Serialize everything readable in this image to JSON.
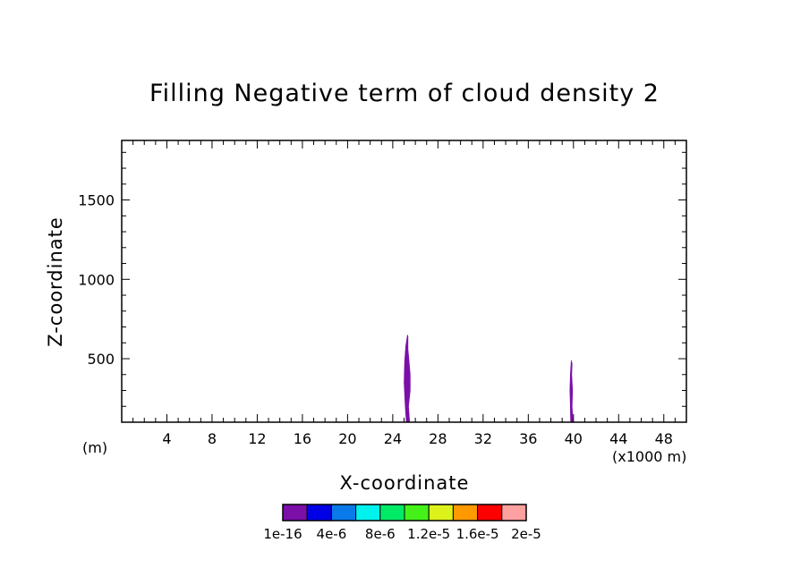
{
  "chart_data": {
    "type": "heatmap",
    "title": "Filling Negative term of cloud density 2",
    "xlabel": "X-coordinate",
    "ylabel": "Z-coordinate",
    "x_unit": "(x1000 m)",
    "y_unit": "(m)",
    "xlim": [
      0,
      50
    ],
    "ylim": [
      100,
      1875
    ],
    "xticks": [
      4,
      8,
      12,
      16,
      20,
      24,
      28,
      32,
      36,
      40,
      44,
      48
    ],
    "yticks": [
      500,
      1000,
      1500
    ],
    "grid": false,
    "colorbar": {
      "orientation": "horizontal",
      "position": "bottom",
      "colors": [
        "#7b0fa8",
        "#0000e6",
        "#0a7aea",
        "#00f2ee",
        "#00ea66",
        "#44f21a",
        "#dcf21a",
        "#ff9900",
        "#ff0000",
        "#ffa0a0"
      ],
      "labels": [
        "1e-16",
        "4e-6",
        "8e-6",
        "1.2e-5",
        "1.6e-5",
        "2e-5"
      ]
    },
    "series": [
      {
        "level": "1e-16",
        "color": "#7b0fa8",
        "polygons": [
          [
            [
              25.2,
              100
            ],
            [
              25.1,
              200
            ],
            [
              25.0,
              350
            ],
            [
              25.05,
              480
            ],
            [
              25.15,
              580
            ],
            [
              25.3,
              650
            ],
            [
              25.35,
              640
            ],
            [
              25.35,
              560
            ],
            [
              25.45,
              480
            ],
            [
              25.55,
              400
            ],
            [
              25.55,
              300
            ],
            [
              25.4,
              200
            ],
            [
              25.5,
              100
            ]
          ],
          [
            [
              39.75,
              100
            ],
            [
              39.72,
              200
            ],
            [
              39.68,
              300
            ],
            [
              39.72,
              400
            ],
            [
              39.8,
              490
            ],
            [
              39.88,
              470
            ],
            [
              39.85,
              400
            ],
            [
              39.92,
              300
            ],
            [
              39.88,
              200
            ],
            [
              39.95,
              100
            ]
          ]
        ]
      }
    ]
  }
}
